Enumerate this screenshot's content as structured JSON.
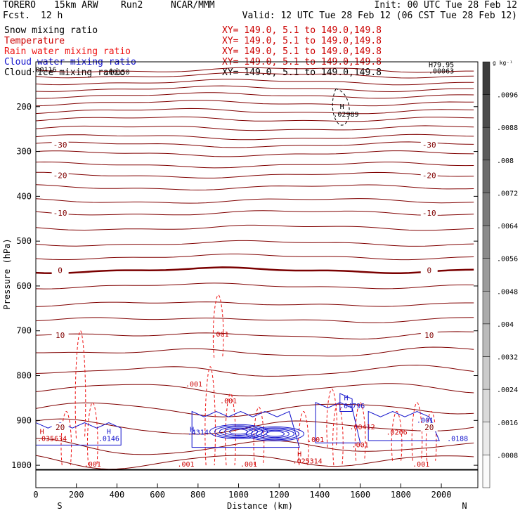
{
  "header": {
    "model": "TORERO",
    "res": "15km ARW",
    "run": "Run2",
    "org": "NCAR/MMM",
    "init": "Init: 00 UTC Tue 28 Feb 12",
    "fcst_label": "Fcst.",
    "fcst_value": "12 h",
    "valid": "Valid: 12 UTC Tue 28 Feb 12 (06 CST Tue 28 Feb 12)"
  },
  "fields": [
    {
      "name": "Snow mixing ratio",
      "xy": "XY= 149.0,  5.1 to 149.0,149.8",
      "color": "#000000"
    },
    {
      "name": "Temperature",
      "xy": "XY= 149.0,  5.1 to 149.0,149.8",
      "color": "#cc0000"
    },
    {
      "name": "Rain water mixing ratio",
      "xy": "XY= 149.0,  5.1 to 149.0,149.8",
      "color": "#ee1111"
    },
    {
      "name": "Cloud water mixing ratio",
      "xy": "XY= 149.0,  5.1 to 149.0,149.8",
      "color": "#1111cc"
    },
    {
      "name": "Cloud ice mixing ratio",
      "xy": "XY= 149.0,  5.1 to 149.0,149.8",
      "color": "#000000"
    }
  ],
  "chart_data": {
    "type": "cross-section contour",
    "xlabel": "Distance (km)",
    "ylabel": "Pressure (hPa)",
    "xlim": [
      0,
      2180
    ],
    "ylim": [
      1050,
      100
    ],
    "xticks": [
      0,
      200,
      400,
      600,
      800,
      1000,
      1200,
      1400,
      1600,
      1800,
      2000
    ],
    "yticks": [
      200,
      300,
      400,
      500,
      600,
      700,
      800,
      900,
      1000
    ],
    "left_end": "S",
    "right_end": "N",
    "surface_pressure": 1010,
    "colorbar": {
      "unit": "g kg⁻¹",
      "labels": [
        ".0096",
        ".0088",
        ".008",
        ".0072",
        ".0064",
        ".0056",
        ".0048",
        ".004",
        ".0032",
        ".0024",
        ".0016",
        ".0008"
      ]
    },
    "temperature_contours": [
      {
        "label": "-30",
        "pressure": 285
      },
      {
        "label": "-20",
        "pressure": 353
      },
      {
        "label": "-10",
        "pressure": 437
      },
      {
        "label": "0",
        "pressure": 565
      },
      {
        "label": "10",
        "pressure": 710
      },
      {
        "label": "20",
        "pressure": 915
      }
    ],
    "annotations": [
      {
        "text": "H",
        "x": 1510,
        "pressure": 205,
        "color": "#000000"
      },
      {
        "text": ".02989",
        "x": 1530,
        "pressure": 222,
        "color": "#000000"
      },
      {
        "text": ".00150",
        "x": 400,
        "pressure": 128,
        "color": "#000000"
      },
      {
        "text": ".00116",
        "x": 40,
        "pressure": 123,
        "color": "#000000"
      },
      {
        "text": "H79.95",
        "x": 2000,
        "pressure": 112,
        "color": "#000000"
      },
      {
        "text": ".00063",
        "x": 2000,
        "pressure": 126,
        "color": "#000000"
      },
      {
        "text": ".001",
        "x": 910,
        "pressure": 713,
        "color": "#cc0000"
      },
      {
        "text": ".001",
        "x": 780,
        "pressure": 824,
        "color": "#cc0000"
      },
      {
        "text": ".001",
        "x": 950,
        "pressure": 862,
        "color": "#cc0000"
      },
      {
        "text": ".001",
        "x": 1380,
        "pressure": 948,
        "color": "#cc0000"
      },
      {
        "text": ".001",
        "x": 1600,
        "pressure": 960,
        "color": "#cc0000"
      },
      {
        "text": ".001",
        "x": 280,
        "pressure": 1003,
        "color": "#cc0000"
      },
      {
        "text": ".001",
        "x": 740,
        "pressure": 1003,
        "color": "#cc0000"
      },
      {
        "text": ".001",
        "x": 1050,
        "pressure": 1003,
        "color": "#cc0000"
      },
      {
        "text": ".001",
        "x": 1900,
        "pressure": 1003,
        "color": "#cc0000"
      },
      {
        "text": "H",
        "x": 1300,
        "pressure": 980,
        "color": "#cc0000"
      },
      {
        "text": ".025314",
        "x": 1340,
        "pressure": 996,
        "color": "#cc0000"
      },
      {
        "text": "H",
        "x": 30,
        "pressure": 930,
        "color": "#cc0000"
      },
      {
        "text": ".035634",
        "x": 80,
        "pressure": 946,
        "color": "#cc0000"
      },
      {
        "text": "H",
        "x": 1530,
        "pressure": 855,
        "color": "#1111cc"
      },
      {
        "text": ".04796",
        "x": 1560,
        "pressure": 873,
        "color": "#1111cc"
      },
      {
        "text": "H",
        "x": 360,
        "pressure": 930,
        "color": "#1111cc"
      },
      {
        "text": ".0146",
        "x": 360,
        "pressure": 946,
        "color": "#1111cc"
      },
      {
        "text": "H",
        "x": 770,
        "pressure": 925,
        "color": "#1111cc"
      },
      {
        "text": ".4314",
        "x": 800,
        "pressure": 932,
        "color": "#1111cc"
      },
      {
        "text": ".0188",
        "x": 2080,
        "pressure": 946,
        "color": "#1111cc"
      },
      {
        "text": ".00412",
        "x": 1610,
        "pressure": 920,
        "color": "#cc0000"
      },
      {
        "text": ".0206",
        "x": 1780,
        "pressure": 932,
        "color": "#cc0000"
      },
      {
        "text": ".001",
        "x": 1920,
        "pressure": 905,
        "color": "#1111cc"
      }
    ]
  }
}
